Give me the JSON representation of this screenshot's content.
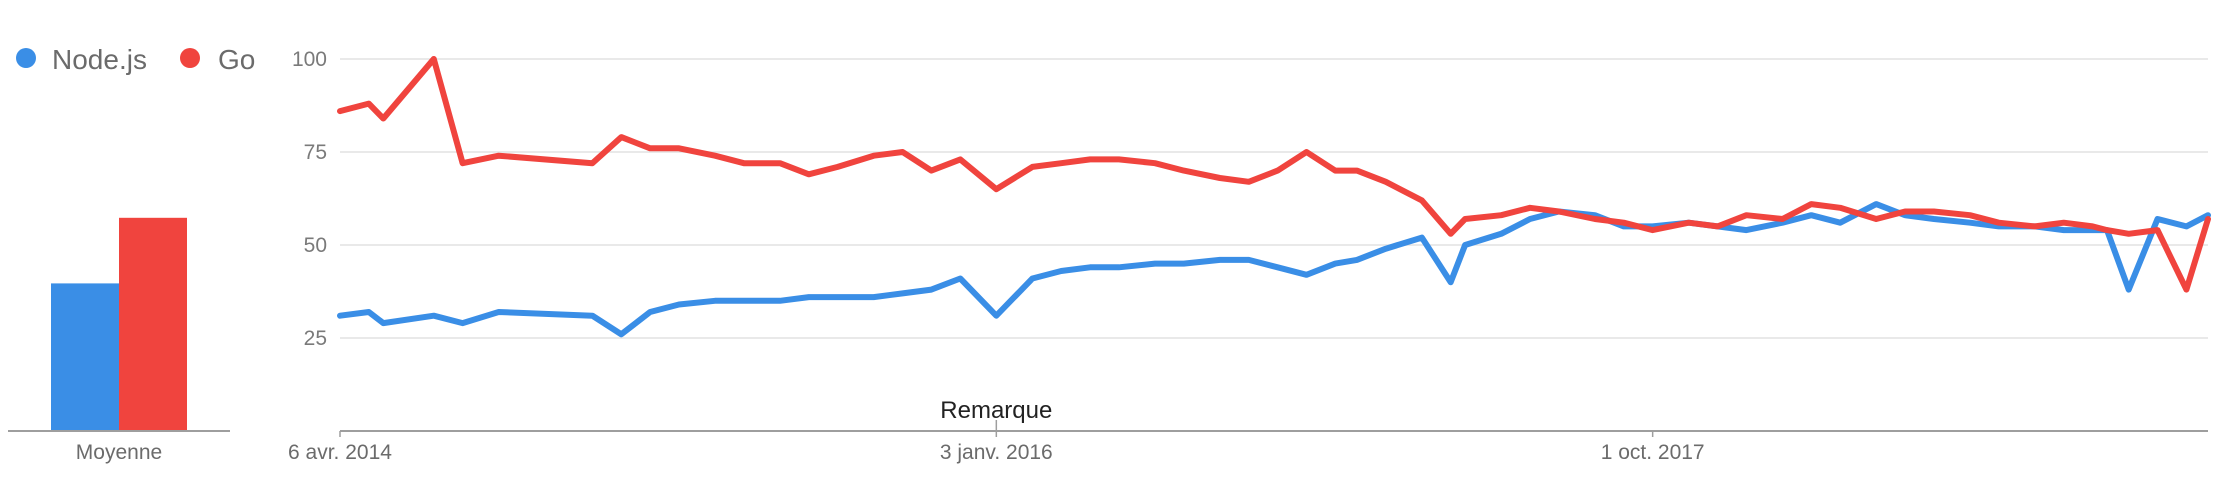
{
  "chart_data": [
    {
      "type": "bar",
      "categories": [
        "Moyenne"
      ],
      "series": [
        {
          "name": "Node.js",
          "color": "#3a8ee6",
          "values": [
            45
          ]
        },
        {
          "name": "Go",
          "color": "#f0443e",
          "values": [
            65
          ]
        }
      ],
      "legend_position": "top-left",
      "ylim": [
        0,
        100
      ]
    },
    {
      "type": "line",
      "x": [
        "2014-04-06",
        "2014-05-04",
        "2014-05-18",
        "2014-07-06",
        "2014-08-03",
        "2014-09-07",
        "2014-12-07",
        "2015-01-04",
        "2015-02-01",
        "2015-03-01",
        "2015-04-05",
        "2015-05-03",
        "2015-06-07",
        "2015-07-05",
        "2015-08-02",
        "2015-09-06",
        "2015-10-04",
        "2015-11-01",
        "2015-11-29",
        "2016-01-03",
        "2016-02-07",
        "2016-03-06",
        "2016-04-03",
        "2016-05-01",
        "2016-06-05",
        "2016-07-03",
        "2016-08-07",
        "2016-09-04",
        "2016-10-02",
        "2016-10-30",
        "2016-11-27",
        "2016-12-18",
        "2017-01-15",
        "2017-02-19",
        "2017-03-19",
        "2017-04-02",
        "2017-05-07",
        "2017-06-04",
        "2017-07-02",
        "2017-08-06",
        "2017-09-03",
        "2017-10-01",
        "2017-11-05",
        "2017-12-03",
        "2017-12-31",
        "2018-02-04",
        "2018-03-04",
        "2018-04-01",
        "2018-05-06",
        "2018-06-03",
        "2018-07-01",
        "2018-08-05",
        "2018-09-02",
        "2018-10-07",
        "2018-11-04",
        "2018-12-02",
        "2018-12-16",
        "2019-01-06",
        "2019-02-03",
        "2019-03-03",
        "2019-03-24"
      ],
      "series": [
        {
          "name": "Node.js",
          "color": "#3a8ee6",
          "values": [
            31,
            32,
            29,
            31,
            29,
            32,
            31,
            26,
            32,
            34,
            35,
            35,
            35,
            36,
            36,
            36,
            37,
            38,
            41,
            31,
            41,
            43,
            44,
            44,
            45,
            45,
            46,
            46,
            44,
            42,
            45,
            46,
            49,
            52,
            40,
            50,
            53,
            57,
            59,
            58,
            55,
            55,
            56,
            55,
            54,
            56,
            58,
            56,
            61,
            58,
            57,
            56,
            55,
            55,
            54,
            54,
            54,
            38,
            57,
            55,
            58
          ]
        },
        {
          "name": "Go",
          "color": "#f0443e",
          "values": [
            86,
            88,
            84,
            100,
            72,
            74,
            72,
            79,
            76,
            76,
            74,
            72,
            72,
            69,
            71,
            74,
            75,
            70,
            73,
            65,
            71,
            72,
            73,
            73,
            72,
            70,
            68,
            67,
            70,
            75,
            70,
            70,
            67,
            62,
            53,
            57,
            58,
            60,
            59,
            57,
            56,
            54,
            56,
            55,
            58,
            57,
            61,
            60,
            57,
            59,
            59,
            58,
            56,
            55,
            56,
            55,
            54,
            53,
            54,
            38,
            57
          ]
        }
      ],
      "x_ticks": [
        "6 avr. 2014",
        "3 janv. 2016",
        "1 oct. 2017"
      ],
      "y_ticks": [
        "100",
        "75",
        "50",
        "25"
      ],
      "ylim": [
        0,
        100
      ],
      "grid": true,
      "annotation": "Remarque"
    }
  ]
}
